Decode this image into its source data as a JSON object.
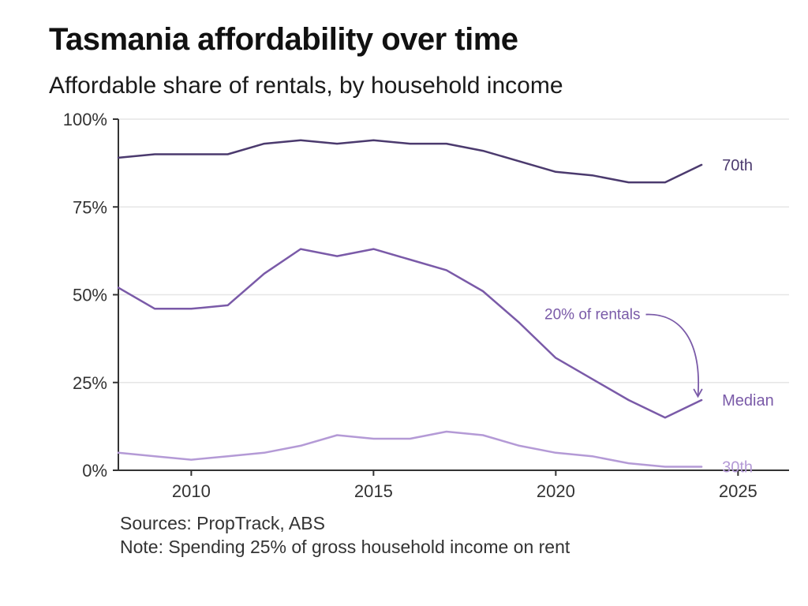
{
  "chart_data": {
    "type": "line",
    "title": "Tasmania affordability over time",
    "subtitle": "Affordable share of rentals, by household income",
    "xlabel": "",
    "ylabel": "",
    "xlim": [
      2008,
      2026.4
    ],
    "ylim": [
      0,
      100
    ],
    "x_ticks": [
      {
        "value": 2010,
        "label": "2010"
      },
      {
        "value": 2015,
        "label": "2015"
      },
      {
        "value": 2020,
        "label": "2020"
      },
      {
        "value": 2025,
        "label": "2025"
      }
    ],
    "y_ticks": [
      {
        "value": 0,
        "label": "0%"
      },
      {
        "value": 25,
        "label": "25%"
      },
      {
        "value": 50,
        "label": "50%"
      },
      {
        "value": 75,
        "label": "75%"
      },
      {
        "value": 100,
        "label": "100%"
      }
    ],
    "grid": true,
    "x": [
      2008,
      2009,
      2010,
      2011,
      2012,
      2013,
      2014,
      2015,
      2016,
      2017,
      2018,
      2019,
      2020,
      2021,
      2022,
      2023,
      2024
    ],
    "series": [
      {
        "name": "70th",
        "color": "#4b3a6e",
        "values": [
          89,
          90,
          90,
          90,
          93,
          94,
          93,
          94,
          93,
          93,
          91,
          88,
          85,
          84,
          82,
          82,
          87
        ]
      },
      {
        "name": "Median",
        "color": "#7a5aa8",
        "values": [
          52,
          46,
          46,
          47,
          56,
          63,
          61,
          63,
          60,
          57,
          51,
          42,
          32,
          26,
          20,
          15,
          20
        ]
      },
      {
        "name": "30th",
        "color": "#b49ad6",
        "values": [
          5,
          4,
          3,
          4,
          5,
          7,
          10,
          9,
          9,
          11,
          10,
          7,
          5,
          4,
          2,
          1,
          1
        ]
      }
    ],
    "annotations": [
      {
        "text": "20% of rentals",
        "target_x": 2023.9,
        "target_y": 21,
        "color": "#7a5aa8"
      }
    ]
  },
  "footer": {
    "sources": "Sources: PropTrack, ABS",
    "note": "Note: Spending 25% of gross household income on rent"
  },
  "colors": {
    "axis": "#333333",
    "grid": "#e6e6e6"
  }
}
